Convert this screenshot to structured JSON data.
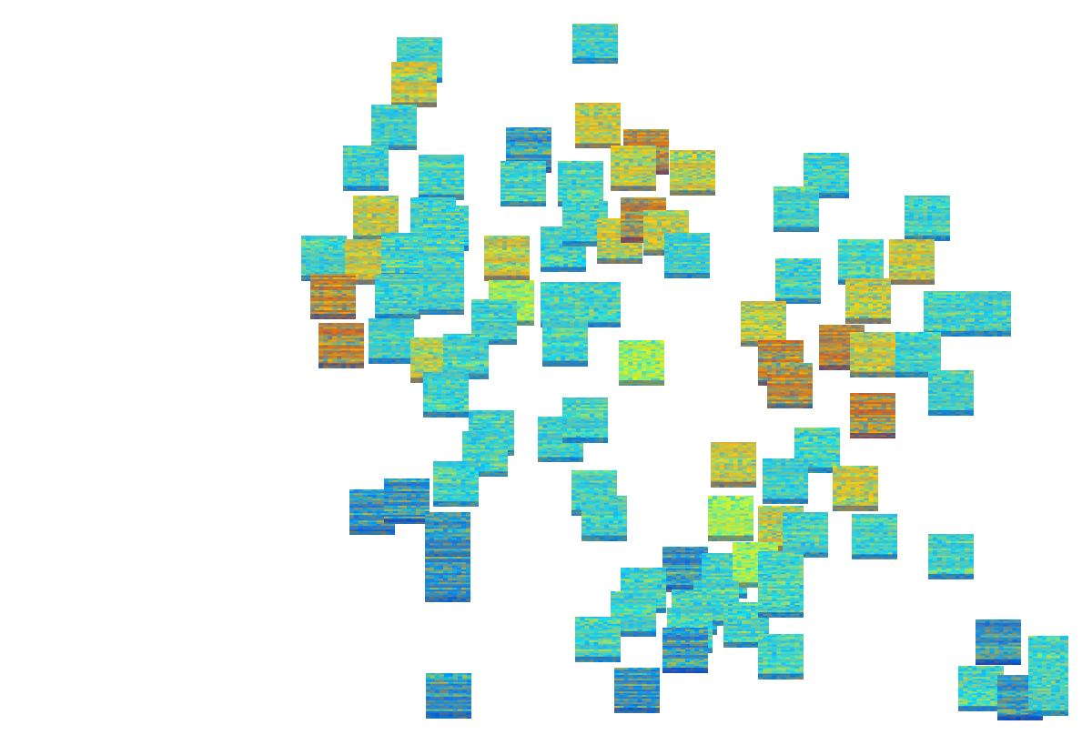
{
  "chart_data": {
    "type": "scatter",
    "x": [
      455,
      448,
      656,
      425,
      393,
      480,
      580,
      574,
      660,
      715,
      700,
      768,
      640,
      405,
      470,
      485,
      345,
      395,
      437,
      480,
      555,
      620,
      645,
      685,
      712,
      738,
      762,
      355,
      430,
      480,
      560,
      620,
      660,
      540,
      365,
      422,
      470,
      508,
      622,
      710,
      485,
      922,
      887,
      1038,
      890,
      962,
      1020,
      970,
      1060,
      1108,
      850,
      870,
      880,
      940,
      975,
      1028,
      1065,
      975,
      537,
      530,
      617,
      645,
      497,
      400,
      440,
      655,
      667,
      815,
      912,
      875,
      955,
      487,
      487,
      812,
      870,
      898,
      977,
      1065,
      760,
      805,
      840,
      870,
      712,
      700,
      770,
      795,
      830,
      870,
      660,
      765,
      760,
      870,
      705,
      488,
      1120,
      1180,
      1100,
      1145,
      1180
    ],
    "values": [
      787,
      758,
      810,
      708,
      660,
      650,
      682,
      642,
      710,
      680,
      660,
      655,
      642,
      602,
      600,
      590,
      555,
      550,
      558,
      545,
      555,
      565,
      595,
      575,
      600,
      585,
      558,
      510,
      510,
      515,
      502,
      500,
      500,
      480,
      452,
      458,
      435,
      440,
      455,
      432,
      395,
      652,
      612,
      602,
      528,
      550,
      550,
      505,
      490,
      490,
      478,
      432,
      405,
      450,
      442,
      442,
      397,
      370,
      350,
      325,
      342,
      365,
      290,
      257,
      270,
      280,
      250,
      313,
      330,
      293,
      285,
      230,
      178,
      250,
      238,
      230,
      228,
      205,
      190,
      182,
      195,
      185,
      165,
      138,
      140,
      150,
      125,
      160,
      108,
      118,
      95,
      88,
      48,
      42,
      105,
      85,
      50,
      40,
      45
    ],
    "colors": [
      "#30b0e0",
      "#f0a020",
      "#30b0e0",
      "#30b0e0",
      "#30b0e0",
      "#30b0e0",
      "#1e50d0",
      "#30b0e0",
      "#f0a020",
      "#e04010",
      "#f0a020",
      "#f0a020",
      "#30b0e0",
      "#f0a020",
      "#30b0e0",
      "#30b0e0",
      "#30b0e0",
      "#f0a020",
      "#30b0e0",
      "#30b0e0",
      "#f0a020",
      "#30b0e0",
      "#30b0e0",
      "#f0a020",
      "#e04010",
      "#f0a020",
      "#30b0e0",
      "#e04010",
      "#30b0e0",
      "#30b0e0",
      "#c0e040",
      "#30b0e0",
      "#30b0e0",
      "#30b0e0",
      "#e04010",
      "#30b0e0",
      "#f0a020",
      "#30b0e0",
      "#30b0e0",
      "#c0e040",
      "#30b0e0",
      "#30b0e0",
      "#30b0e0",
      "#30b0e0",
      "#30b0e0",
      "#30b0e0",
      "#f0a020",
      "#f0a020",
      "#30b0e0",
      "#30b0e0",
      "#f0a020",
      "#e04010",
      "#e04010",
      "#e04010",
      "#f0a020",
      "#30b0e0",
      "#30b0e0",
      "#e04010",
      "#30b0e0",
      "#30b0e0",
      "#30b0e0",
      "#30b0e0",
      "#30b0e0",
      "#1e50d0",
      "#1e50d0",
      "#30b0e0",
      "#30b0e0",
      "#f0a020",
      "#30b0e0",
      "#30b0e0",
      "#f0a020",
      "#1e50d0",
      "#1e50d0",
      "#c0e040",
      "#f0a020",
      "#30b0e0",
      "#30b0e0",
      "#30b0e0",
      "#1e50d0",
      "#30b0e0",
      "#c0e040",
      "#30b0e0",
      "#30b0e0",
      "#30b0e0",
      "#30b0e0",
      "#30b0e0",
      "#30b0e0",
      "#30b0e0",
      "#30b0e0",
      "#30b0e0",
      "#1e50d0",
      "#30b0e0",
      "#1e50d0",
      "#1e50d0",
      "#1e50d0",
      "#30b0e0",
      "#30b0e0",
      "#1e50d0",
      "#30b0e0"
    ],
    "marker": "square",
    "xlim": [
      0,
      1200
    ],
    "ylim": [
      0,
      830
    ],
    "tick_labels": false,
    "grid": false
  }
}
